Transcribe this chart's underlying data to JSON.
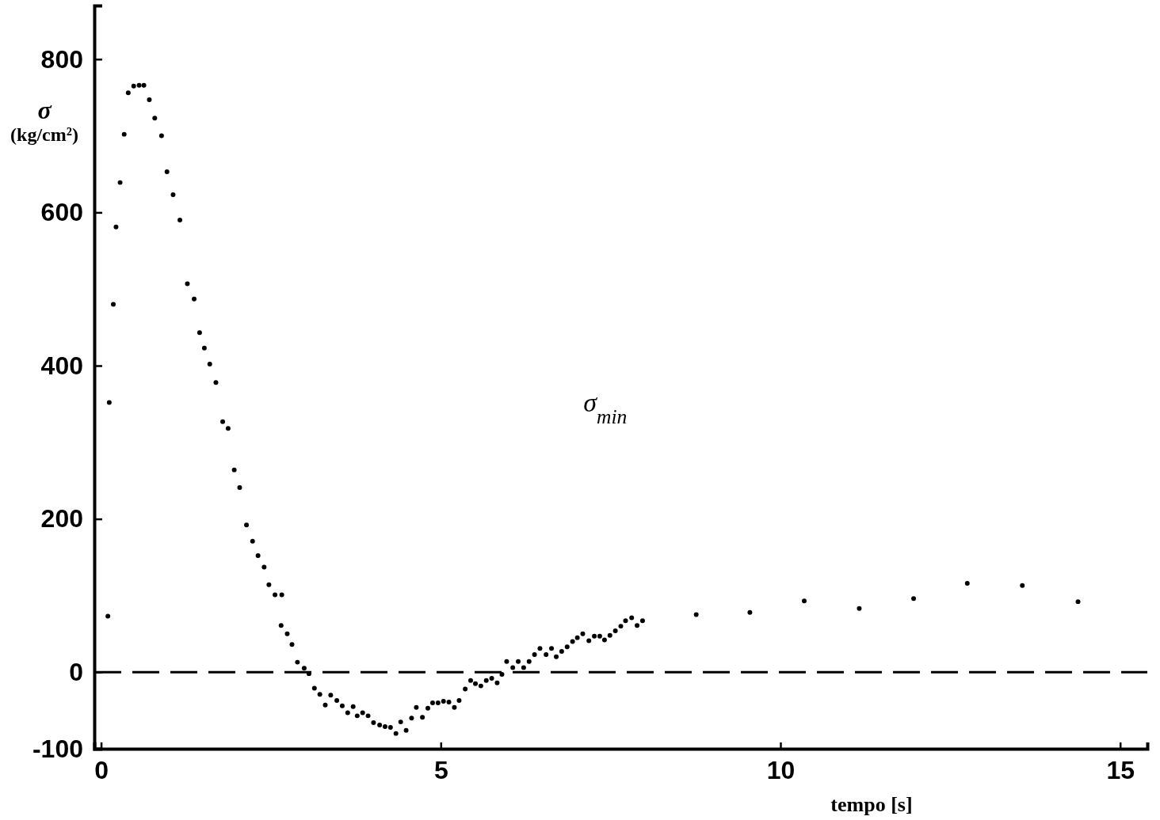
{
  "chart_data": {
    "type": "scatter",
    "xlabel": "tempo [s]",
    "ylabel": "σ\n(kg/cm²)",
    "xlim": [
      -0.1,
      15.4
    ],
    "xticks": [
      0,
      5,
      10,
      15
    ],
    "ylim": [
      -100,
      870
    ],
    "yticks": [
      -100,
      0,
      200,
      400,
      600,
      800
    ],
    "marker": "circle",
    "grid": false,
    "legend": false,
    "ref_lines": [
      {
        "axis": "y",
        "value": 0,
        "line_style": "dashed",
        "color": "#000000"
      }
    ],
    "series": [
      {
        "name": "σ$_{min}$",
        "color": "#000000",
        "x": [
          0.1,
          0.12,
          0.18,
          0.22,
          0.28,
          0.34,
          0.4,
          0.48,
          0.56,
          0.63,
          0.71,
          0.79,
          0.89,
          0.97,
          1.06,
          1.16,
          1.27,
          1.37,
          1.45,
          1.52,
          1.6,
          1.69,
          1.79,
          1.87,
          1.96,
          2.04,
          2.14,
          2.23,
          2.31,
          2.4,
          2.47,
          2.56,
          2.66,
          2.65,
          2.74,
          2.81,
          2.89,
          2.99,
          3.06,
          3.14,
          3.22,
          3.3,
          3.38,
          3.47,
          3.55,
          3.63,
          3.71,
          3.77,
          3.85,
          3.93,
          4.01,
          4.1,
          4.18,
          4.26,
          4.34,
          4.41,
          4.49,
          4.57,
          4.64,
          4.73,
          4.81,
          4.88,
          4.96,
          5.04,
          5.12,
          5.2,
          5.27,
          5.36,
          5.44,
          5.51,
          5.59,
          5.67,
          5.75,
          5.83,
          5.9,
          5.97,
          6.06,
          6.14,
          6.22,
          6.3,
          6.38,
          6.46,
          6.55,
          6.63,
          6.7,
          6.78,
          6.86,
          6.94,
          7.01,
          7.09,
          7.18,
          7.26,
          7.34,
          7.41,
          7.49,
          7.57,
          7.65,
          7.72,
          7.81,
          7.89,
          7.97,
          8.76,
          9.55,
          10.35,
          11.16,
          11.96,
          12.75,
          13.56,
          14.38
        ],
        "values": [
          73,
          352,
          480,
          581,
          639,
          702,
          756,
          765,
          766,
          766,
          747,
          723,
          700,
          653,
          623,
          590,
          507,
          487,
          443,
          423,
          402,
          378,
          327,
          318,
          264,
          241,
          192,
          171,
          152,
          137,
          114,
          101,
          101,
          61,
          50,
          36,
          13,
          5,
          -2,
          -21,
          -29,
          -43,
          -30,
          -37,
          -44,
          -53,
          -45,
          -57,
          -53,
          -57,
          -66,
          -69,
          -71,
          -72,
          -80,
          -65,
          -76,
          -60,
          -46,
          -59,
          -47,
          -40,
          -40,
          -38,
          -39,
          -46,
          -37,
          -22,
          -11,
          -15,
          -18,
          -11,
          -8,
          -14,
          -3,
          14,
          6,
          14,
          6,
          14,
          23,
          31,
          23,
          31,
          20,
          27,
          33,
          40,
          45,
          50,
          41,
          47,
          47,
          42,
          48,
          54,
          60,
          67,
          71,
          61,
          67,
          75,
          78,
          93,
          83,
          96,
          116,
          113,
          92
        ]
      }
    ]
  }
}
